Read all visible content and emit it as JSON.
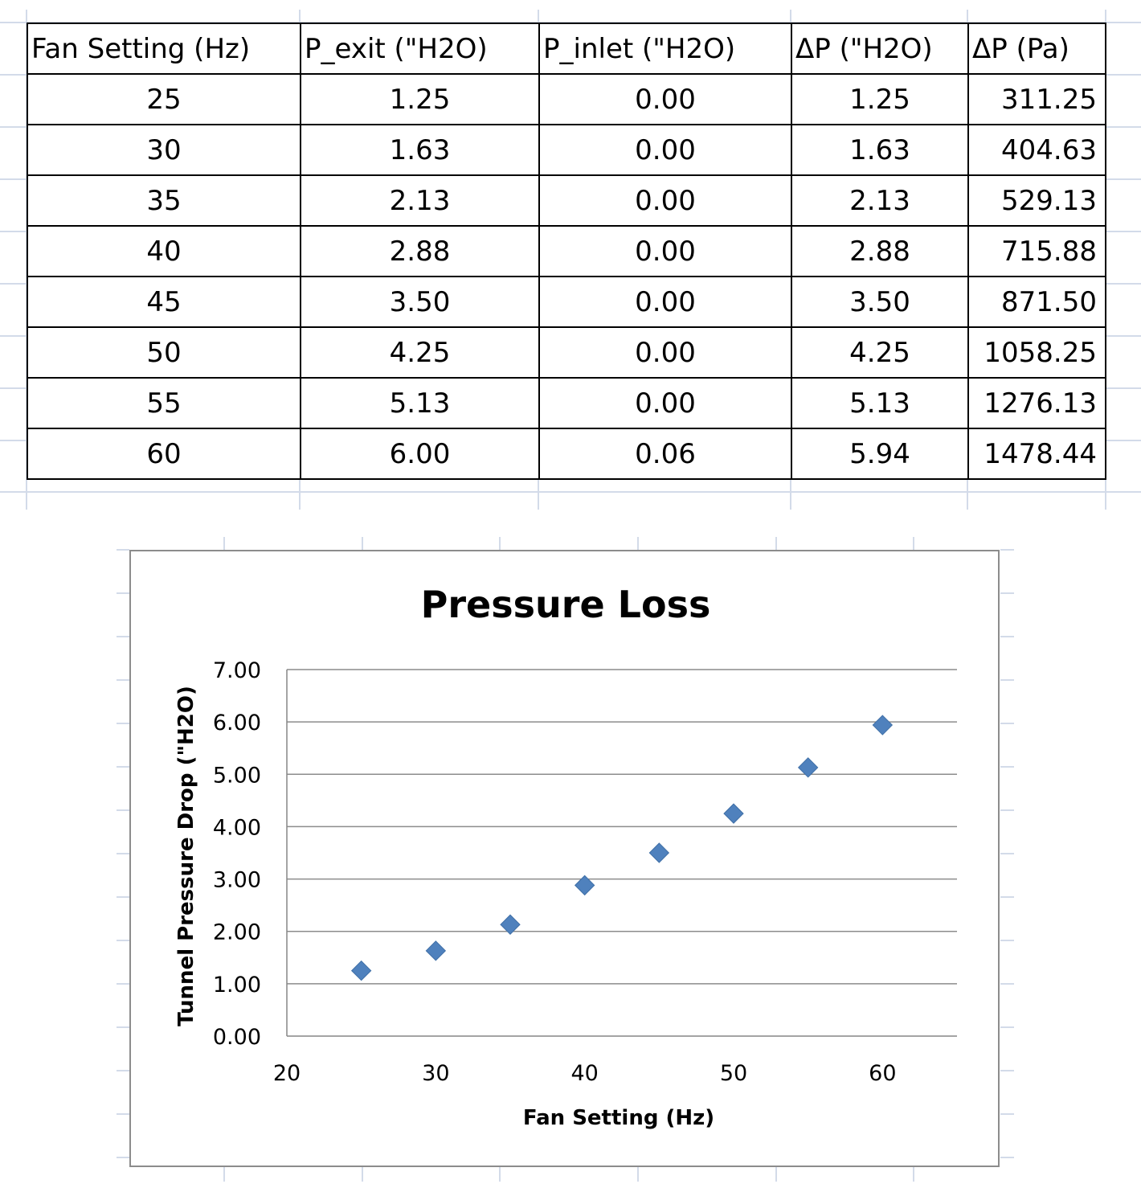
{
  "table": {
    "headers": [
      "Fan Setting (Hz)",
      "P_exit (\"H2O)",
      "P_inlet (\"H2O)",
      "ΔP (\"H2O)",
      "ΔP (Pa)"
    ],
    "rows": [
      [
        "25",
        "1.25",
        "0.00",
        "1.25",
        "311.25"
      ],
      [
        "30",
        "1.63",
        "0.00",
        "1.63",
        "404.63"
      ],
      [
        "35",
        "2.13",
        "0.00",
        "2.13",
        "529.13"
      ],
      [
        "40",
        "2.88",
        "0.00",
        "2.88",
        "715.88"
      ],
      [
        "45",
        "3.50",
        "0.00",
        "3.50",
        "871.50"
      ],
      [
        "50",
        "4.25",
        "0.00",
        "4.25",
        "1058.25"
      ],
      [
        "55",
        "5.13",
        "0.00",
        "5.13",
        "1276.13"
      ],
      [
        "60",
        "6.00",
        "0.06",
        "5.94",
        "1478.44"
      ]
    ]
  },
  "chart_data": {
    "type": "scatter",
    "title": "Pressure Loss",
    "xlabel": "Fan Setting (Hz)",
    "ylabel": "Tunnel Pressure Drop (\"H2O)",
    "x": [
      25,
      30,
      35,
      40,
      45,
      50,
      55,
      60
    ],
    "y": [
      1.25,
      1.63,
      2.13,
      2.88,
      3.5,
      4.25,
      5.13,
      5.94
    ],
    "xlim": [
      20,
      65
    ],
    "ylim": [
      0,
      7
    ],
    "xticks": [
      "20",
      "30",
      "40",
      "50",
      "60"
    ],
    "yticks": [
      "0.00",
      "1.00",
      "2.00",
      "3.00",
      "4.00",
      "5.00",
      "6.00",
      "7.00"
    ],
    "marker": "diamond",
    "marker_color": "#4f81bd",
    "grid": true,
    "legend": false
  }
}
